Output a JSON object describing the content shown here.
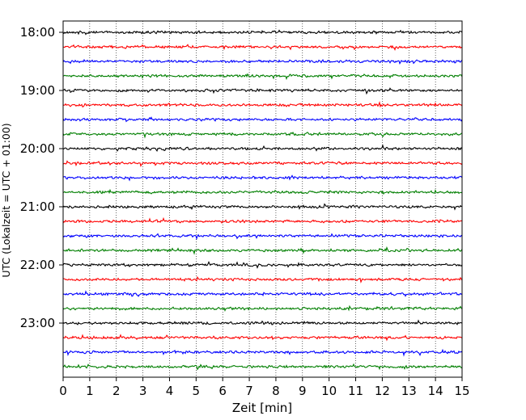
{
  "chart_data": {
    "type": "line",
    "title": "",
    "xlabel": "Zeit  [min]",
    "ylabel": "UTC (Lokalzeit = UTC + 01:00)",
    "x_ticks": [
      "0",
      "1",
      "2",
      "3",
      "4",
      "5",
      "6",
      "7",
      "8",
      "9",
      "10",
      "11",
      "12",
      "13",
      "14",
      "15"
    ],
    "xlim": [
      0,
      15
    ],
    "y_ticks": [
      "18:00",
      "19:00",
      "20:00",
      "21:00",
      "22:00",
      "23:00"
    ],
    "grid": "vertical dotted at each minute",
    "trace_interval_minutes": 15,
    "trace_count": 24,
    "first_trace": "18:00",
    "trace_colors": [
      "#000000",
      "#ff0000",
      "#0000ff",
      "#007f00"
    ]
  }
}
